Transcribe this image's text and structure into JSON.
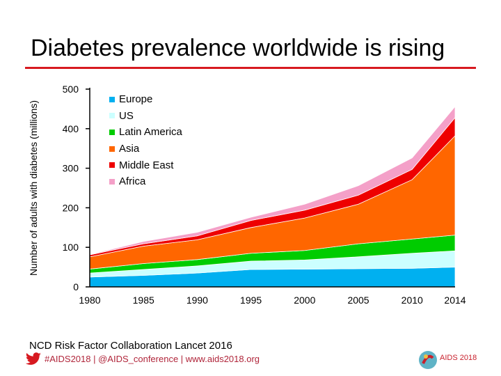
{
  "title": "Diabetes prevalence worldwide is rising",
  "source": "NCD Risk Factor Collaboration Lancet 2016",
  "social": "#AIDS2018 | @AIDS_conference | www.aids2018.org",
  "logo_text": "AIDS 2018",
  "chart_data": {
    "type": "area",
    "stacked": true,
    "ylabel": "Number of adults with diabetes (millions)",
    "xlabel": "",
    "ylim": [
      0,
      500
    ],
    "yticks": [
      "0",
      "100",
      "200",
      "300",
      "400",
      "500"
    ],
    "xticks": [
      "1980",
      "1985",
      "1990",
      "1995",
      "2000",
      "2005",
      "2010",
      "2014"
    ],
    "x": [
      1980,
      1985,
      1990,
      1995,
      2000,
      2005,
      2010,
      2014
    ],
    "legend": "top-left",
    "series": [
      {
        "name": "Europe",
        "color": "#00b0f0",
        "values": [
          25,
          29,
          35,
          44,
          45,
          46,
          47,
          50
        ]
      },
      {
        "name": "US",
        "color": "#ccffff",
        "values": [
          10,
          15,
          18,
          21,
          23,
          30,
          38,
          41
        ]
      },
      {
        "name": "Latin America",
        "color": "#00cc00",
        "values": [
          10,
          15,
          16,
          20,
          24,
          33,
          36,
          40
        ]
      },
      {
        "name": "Asia",
        "color": "#ff6600",
        "values": [
          31,
          44,
          50,
          65,
          82,
          100,
          150,
          251
        ]
      },
      {
        "name": "Middle East",
        "color": "#ee0000",
        "values": [
          5,
          6,
          10,
          18,
          20,
          23,
          26,
          46
        ]
      },
      {
        "name": "Africa",
        "color": "#f4a0c8",
        "values": [
          1,
          6,
          9,
          8,
          15,
          24,
          29,
          28
        ]
      }
    ]
  }
}
